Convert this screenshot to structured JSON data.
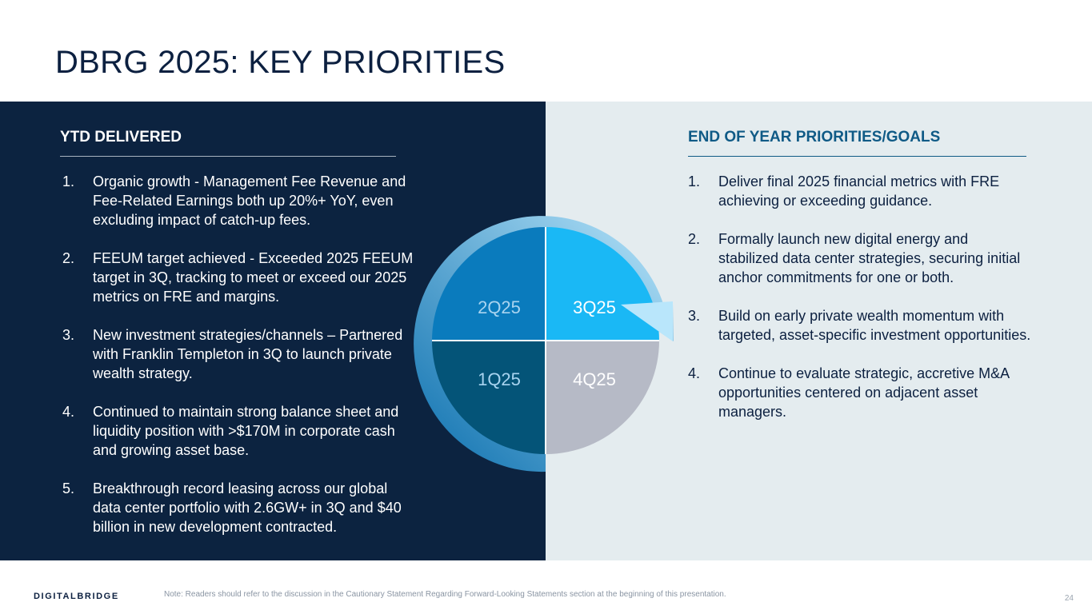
{
  "slide": {
    "title": "DBRG 2025: KEY PRIORITIES"
  },
  "ytd": {
    "heading": "YTD DELIVERED",
    "items": [
      {
        "num": "1.",
        "text": "Organic growth - Management Fee Revenue and Fee-Related Earnings both up 20%+ YoY, even excluding impact of catch-up fees."
      },
      {
        "num": "2.",
        "text": "FEEUM target achieved - Exceeded 2025 FEEUM target in 3Q, tracking to meet or exceed our 2025 metrics on FRE and margins."
      },
      {
        "num": "3.",
        "text": "New investment strategies/channels – Partnered with Franklin Templeton in 3Q to launch private wealth strategy."
      },
      {
        "num": "4.",
        "text": "Continued to maintain strong balance sheet and liquidity position with >$170M in corporate cash and growing asset base."
      },
      {
        "num": "5.",
        "text": "Breakthrough record leasing across our global data center portfolio with 2.6GW+ in 3Q and $40 billion in new development contracted."
      }
    ]
  },
  "goals": {
    "heading": "END OF YEAR PRIORITIES/GOALS",
    "items": [
      {
        "num": "1.",
        "text": "Deliver final 2025 financial metrics with FRE achieving or exceeding guidance."
      },
      {
        "num": "2.",
        "text": "Formally launch new digital energy and stabilized data center strategies, securing initial anchor commitments for one or both."
      },
      {
        "num": "3.",
        "text": "Build on early private wealth momentum with targeted, asset-specific investment opportunities."
      },
      {
        "num": "4.",
        "text": "Continue to evaluate strategic, accretive M&A opportunities centered on adjacent asset managers."
      }
    ]
  },
  "cycle": {
    "quarters": [
      {
        "label": "2Q25",
        "color": "#0a7bbd"
      },
      {
        "label": "3Q25",
        "color": "#1ab8f5"
      },
      {
        "label": "1Q25",
        "color": "#045478"
      },
      {
        "label": "4Q25",
        "color": "#b6bac6"
      }
    ],
    "arrow_colors": [
      "#0b6fae",
      "#b9e6fb"
    ]
  },
  "footer": {
    "logo": "DIGITALBRIDGE",
    "note": "Note: Readers should refer to the discussion in the Cautionary Statement Regarding Forward-Looking Statements section at the beginning of this presentation.",
    "page": "24"
  }
}
